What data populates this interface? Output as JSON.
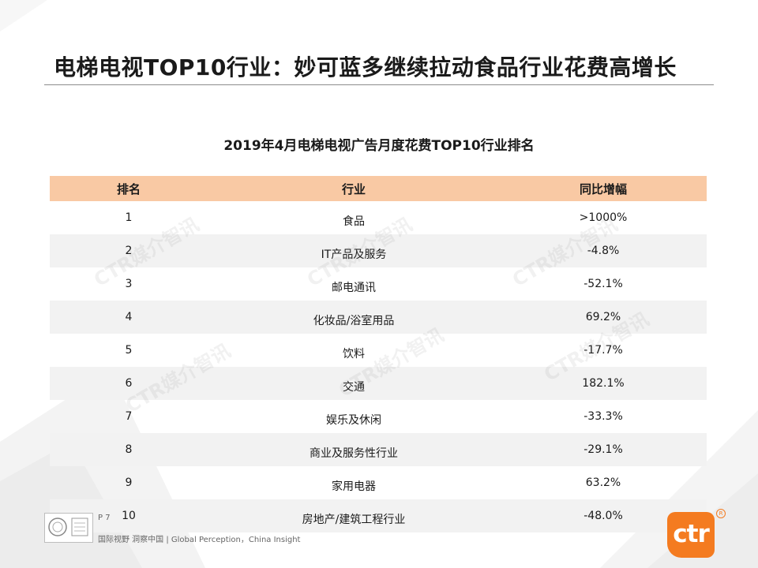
{
  "slide": {
    "title": "电梯电视TOP10行业：妙可蓝多继续拉动食品行业花费高增长"
  },
  "table": {
    "title": "2019年4月电梯电视广告月度花费TOP10行业排名",
    "headers": {
      "rank": "排名",
      "industry": "行业",
      "yoy": "同比增幅"
    },
    "rows": [
      {
        "rank": "1",
        "industry": "食品",
        "yoy": ">1000%"
      },
      {
        "rank": "2",
        "industry": "IT产品及服务",
        "yoy": "-4.8%"
      },
      {
        "rank": "3",
        "industry": "邮电通讯",
        "yoy": "-52.1%"
      },
      {
        "rank": "4",
        "industry": "化妆品/浴室用品",
        "yoy": "69.2%"
      },
      {
        "rank": "5",
        "industry": "饮料",
        "yoy": "-17.7%"
      },
      {
        "rank": "6",
        "industry": "交通",
        "yoy": "182.1%"
      },
      {
        "rank": "7",
        "industry": "娱乐及休闲",
        "yoy": "-33.3%"
      },
      {
        "rank": "8",
        "industry": "商业及服务性行业",
        "yoy": "-29.1%"
      },
      {
        "rank": "9",
        "industry": "家用电器",
        "yoy": "63.2%"
      },
      {
        "rank": "10",
        "industry": "房地产/建筑工程行业",
        "yoy": "-48.0%"
      }
    ]
  },
  "watermark": "CTR媒介智讯",
  "footer": {
    "page": "P 7",
    "slogan": "国际视野  洞察中国  |  Global Perception，China Insight"
  },
  "logo": {
    "text": "ctr",
    "mark": "R"
  },
  "colors": {
    "header_bg": "#f9c9a4",
    "alt_row_bg": "#f2f2f2",
    "brand_orange": "#f47b20"
  }
}
